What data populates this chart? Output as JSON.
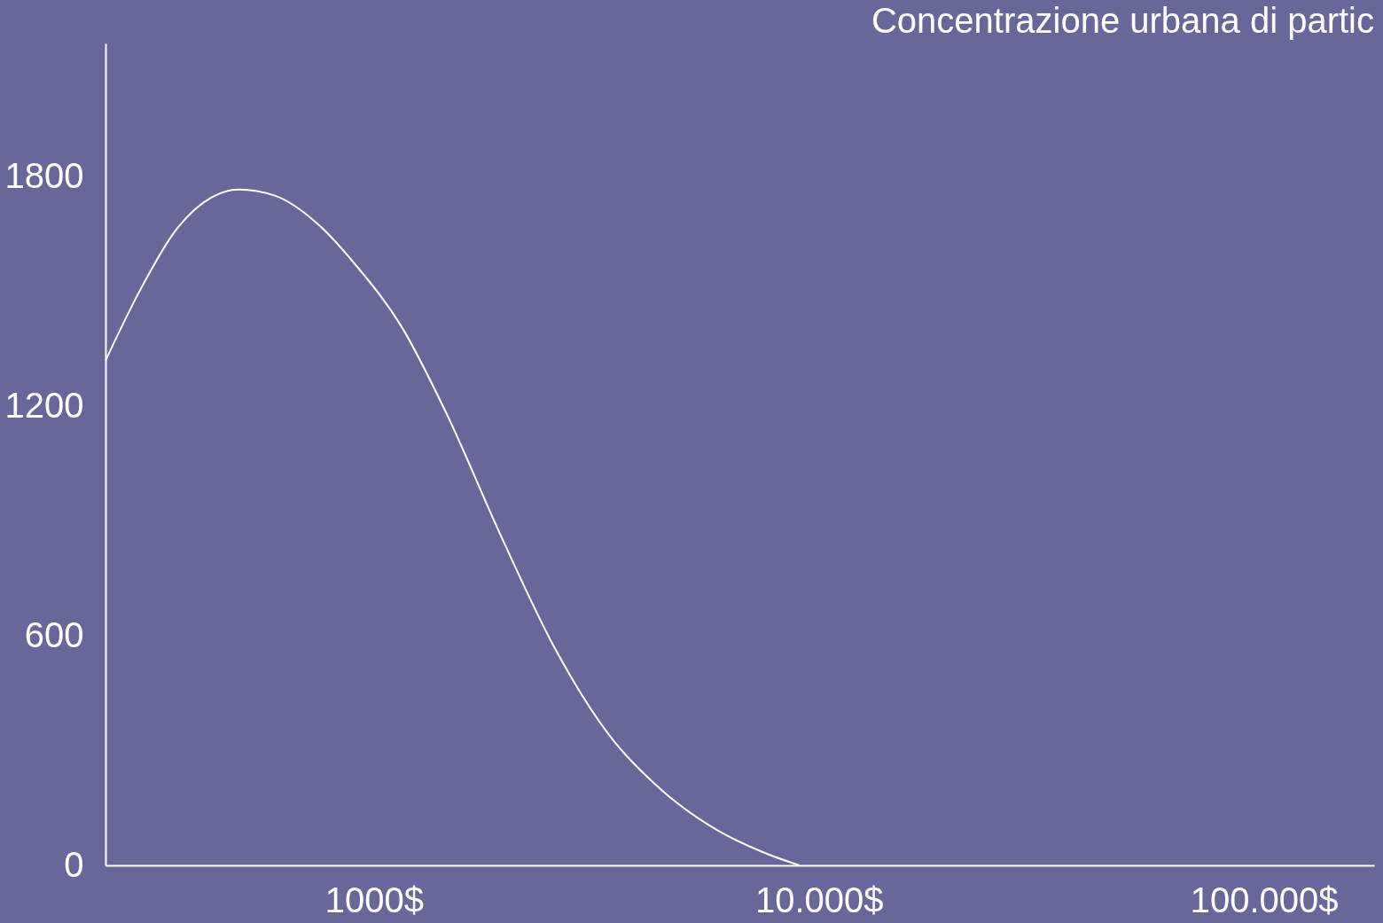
{
  "chart_data": {
    "type": "line",
    "title": "Concentrazione urbana di partic",
    "x": [
      249,
      297,
      358,
      432,
      497,
      598,
      755,
      910,
      1150,
      1452,
      1921,
      2543,
      3365,
      4449,
      5888,
      7430,
      9040
    ],
    "series": [
      {
        "color": "#ffffff",
        "values": [
          1320,
          1502,
          1661,
          1748,
          1768,
          1752,
          1673,
          1570,
          1411,
          1184,
          866,
          570,
          343,
          195,
          93,
          36,
          0
        ]
      }
    ],
    "log": "x",
    "xlim": [
      249,
      177000
    ],
    "ylim": [
      0,
      2150
    ],
    "xticks": [
      {
        "value": 1000,
        "label": "1000$"
      },
      {
        "value": 10000,
        "label": "10.000$"
      },
      {
        "value": 100000,
        "label": "100.000$"
      }
    ],
    "yticks": [
      0,
      600,
      1200,
      1800
    ],
    "grid": false,
    "marker": "none",
    "line_style": "solid"
  }
}
